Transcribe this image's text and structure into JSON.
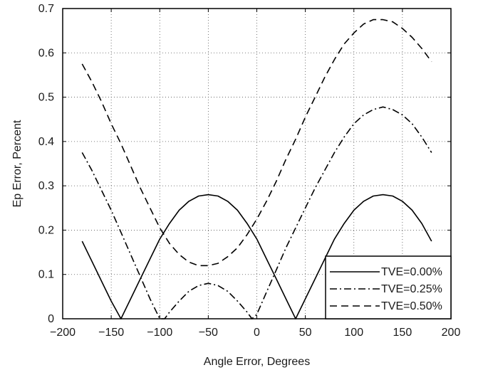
{
  "chart_data": {
    "type": "line",
    "title": "",
    "xlabel": "Angle Error, Degrees",
    "ylabel": "Ep Error, Percent",
    "xlim": [
      -200,
      200
    ],
    "ylim": [
      0,
      0.7
    ],
    "xticks": [
      -200,
      -150,
      -100,
      -50,
      0,
      50,
      100,
      150,
      200
    ],
    "xtick_labels": [
      "−200",
      "−150",
      "−100",
      "−50",
      "0",
      "50",
      "100",
      "150",
      "200"
    ],
    "yticks": [
      0,
      0.1,
      0.2,
      0.3,
      0.4,
      0.5,
      0.6,
      0.7
    ],
    "ytick_labels": [
      "0",
      "0.1",
      "0.2",
      "0.3",
      "0.4",
      "0.5",
      "0.6",
      "0.7"
    ],
    "grid": true,
    "legend_position": "bottom-right",
    "series": [
      {
        "name": "TVE=0.00%",
        "dash": "solid",
        "color": "#000000",
        "x": [
          -180,
          -170,
          -160,
          -150,
          -140,
          -130,
          -120,
          -110,
          -100,
          -90,
          -80,
          -70,
          -60,
          -50,
          -40,
          -30,
          -20,
          -10,
          0,
          10,
          20,
          30,
          40,
          50,
          60,
          70,
          80,
          90,
          100,
          110,
          120,
          130,
          140,
          150,
          160,
          170,
          180
        ],
        "y": [
          0.175,
          0.13,
          0.085,
          0.04,
          0.0,
          0.045,
          0.09,
          0.135,
          0.18,
          0.215,
          0.245,
          0.265,
          0.277,
          0.28,
          0.277,
          0.265,
          0.245,
          0.215,
          0.18,
          0.135,
          0.09,
          0.045,
          0.0,
          0.045,
          0.09,
          0.135,
          0.18,
          0.215,
          0.245,
          0.265,
          0.277,
          0.28,
          0.277,
          0.265,
          0.245,
          0.215,
          0.175
        ]
      },
      {
        "name": "TVE=0.25%",
        "dash": "dashdot",
        "color": "#000000",
        "x": [
          -180,
          -170,
          -160,
          -150,
          -140,
          -130,
          -120,
          -110,
          -100,
          -95,
          -90,
          -80,
          -70,
          -60,
          -50,
          -40,
          -30,
          -20,
          -10,
          -5,
          0,
          10,
          20,
          30,
          40,
          50,
          60,
          70,
          80,
          90,
          100,
          110,
          120,
          130,
          140,
          150,
          160,
          170,
          180
        ],
        "y": [
          0.375,
          0.335,
          0.29,
          0.245,
          0.195,
          0.145,
          0.095,
          0.045,
          0.0,
          0.0,
          0.015,
          0.04,
          0.062,
          0.075,
          0.08,
          0.075,
          0.062,
          0.04,
          0.015,
          0.0,
          0.01,
          0.06,
          0.11,
          0.16,
          0.205,
          0.25,
          0.295,
          0.335,
          0.375,
          0.41,
          0.44,
          0.46,
          0.472,
          0.478,
          0.472,
          0.46,
          0.44,
          0.41,
          0.375
        ]
      },
      {
        "name": "TVE=0.50%",
        "dash": "dash",
        "color": "#000000",
        "x": [
          -180,
          -170,
          -160,
          -150,
          -140,
          -130,
          -120,
          -110,
          -100,
          -90,
          -80,
          -70,
          -60,
          -50,
          -40,
          -30,
          -20,
          -10,
          0,
          10,
          20,
          30,
          40,
          50,
          60,
          70,
          80,
          90,
          100,
          110,
          120,
          130,
          140,
          150,
          160,
          170,
          180
        ],
        "y": [
          0.575,
          0.535,
          0.49,
          0.44,
          0.395,
          0.345,
          0.295,
          0.25,
          0.205,
          0.17,
          0.145,
          0.128,
          0.12,
          0.12,
          0.125,
          0.14,
          0.16,
          0.19,
          0.225,
          0.265,
          0.31,
          0.36,
          0.405,
          0.455,
          0.5,
          0.545,
          0.585,
          0.62,
          0.645,
          0.665,
          0.675,
          0.675,
          0.67,
          0.655,
          0.635,
          0.61,
          0.58
        ]
      }
    ]
  }
}
